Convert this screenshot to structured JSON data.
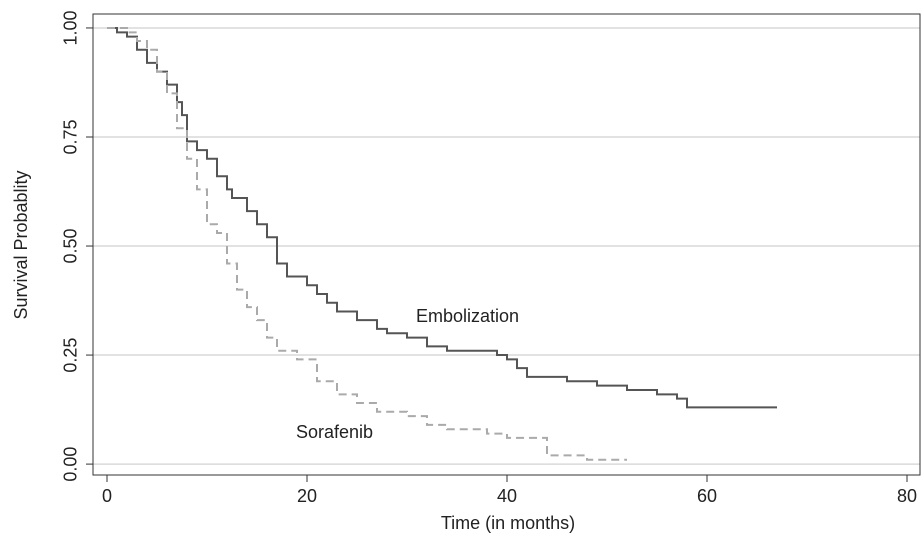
{
  "chart_data": {
    "type": "line",
    "step": true,
    "xlabel": "Time (in months)",
    "ylabel": "Survival Probablity",
    "xlim": [
      -1.4,
      81.3
    ],
    "ylim": [
      -0.025,
      1.032
    ],
    "xticks": [
      0,
      20,
      40,
      60,
      80
    ],
    "yticks": [
      {
        "value": 0,
        "label": "0.00"
      },
      {
        "value": 0.25,
        "label": "0.25"
      },
      {
        "value": 0.5,
        "label": "0.50"
      },
      {
        "value": 0.75,
        "label": "0.75"
      },
      {
        "value": 1,
        "label": "1.00"
      }
    ],
    "grid": true,
    "series": [
      {
        "name": "Embolization",
        "color": "#555555",
        "dash": false,
        "x": [
          0,
          1,
          2,
          3,
          4,
          5,
          6,
          7,
          7.5,
          8,
          9,
          10,
          11,
          12,
          12.5,
          14,
          15,
          16,
          17,
          18,
          20,
          21,
          22,
          23,
          25,
          27,
          28,
          30,
          32,
          34,
          39,
          40,
          41,
          42,
          46,
          49,
          52,
          55,
          57,
          58,
          67
        ],
        "values": [
          1.0,
          0.99,
          0.98,
          0.95,
          0.92,
          0.9,
          0.87,
          0.83,
          0.8,
          0.74,
          0.72,
          0.7,
          0.66,
          0.63,
          0.61,
          0.58,
          0.55,
          0.52,
          0.46,
          0.43,
          0.41,
          0.39,
          0.37,
          0.35,
          0.33,
          0.31,
          0.3,
          0.29,
          0.27,
          0.26,
          0.25,
          0.24,
          0.22,
          0.2,
          0.19,
          0.18,
          0.17,
          0.16,
          0.15,
          0.13,
          0.13
        ]
      },
      {
        "name": "Sorafenib",
        "color": "#aaaaaa",
        "dash": true,
        "x": [
          0,
          2,
          3,
          4,
          5,
          6,
          7,
          8,
          9,
          10,
          11,
          12,
          13,
          14,
          15,
          16,
          17,
          19,
          21,
          23,
          25,
          27,
          30,
          32,
          34,
          38,
          40,
          44,
          48,
          52
        ],
        "values": [
          1.0,
          0.99,
          0.97,
          0.95,
          0.9,
          0.85,
          0.77,
          0.7,
          0.63,
          0.55,
          0.53,
          0.46,
          0.4,
          0.36,
          0.33,
          0.29,
          0.26,
          0.24,
          0.19,
          0.16,
          0.14,
          0.12,
          0.11,
          0.09,
          0.08,
          0.07,
          0.06,
          0.02,
          0.01,
          0.01
        ]
      }
    ]
  }
}
